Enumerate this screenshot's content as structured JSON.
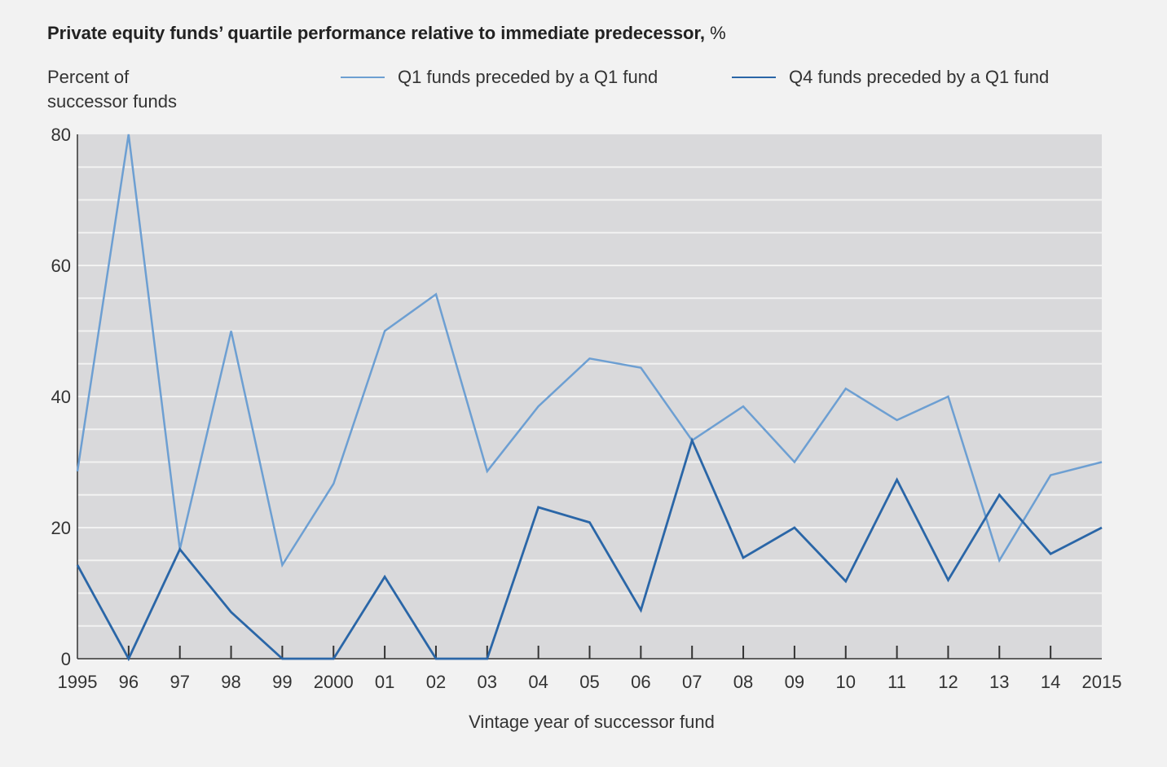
{
  "title": "Private equity funds’ quartile performance relative to immediate predecessor,",
  "title_unit": "%",
  "colors": {
    "background": "#f2f2f2",
    "plot_area": "#d9d9db",
    "gridline": "#f2f2f2",
    "q1_line": "#6d9fd2",
    "q4_line": "#2a66a7",
    "axis": "#333333"
  },
  "chart_data": {
    "type": "line",
    "title": "Private equity funds’ quartile performance relative to immediate predecessor, %",
    "ylabel_lines": [
      "Percent of",
      "successor funds"
    ],
    "xlabel": "Vintage year of successor fund",
    "x_tick_labels": [
      "1995",
      "96",
      "97",
      "98",
      "99",
      "2000",
      "01",
      "02",
      "03",
      "04",
      "05",
      "06",
      "07",
      "08",
      "09",
      "10",
      "11",
      "12",
      "13",
      "14",
      "2015"
    ],
    "y_tick_labels": [
      "0",
      "20",
      "40",
      "60",
      "80"
    ],
    "ylim": [
      0,
      80
    ],
    "y_gridline_step": 5,
    "grid": true,
    "legend_position": "top",
    "series": [
      {
        "name": "Q1 funds preceded by a Q1 fund",
        "color_key": "q1_line",
        "values": [
          28.6,
          80.0,
          16.7,
          50.0,
          14.3,
          26.7,
          50.0,
          55.6,
          28.6,
          38.5,
          45.8,
          44.4,
          33.3,
          38.5,
          30.0,
          41.2,
          36.4,
          40.0,
          15.0,
          28.0,
          30.0
        ]
      },
      {
        "name": "Q4 funds preceded by a Q1 fund",
        "color_key": "q4_line",
        "values": [
          14.3,
          0.0,
          16.7,
          7.1,
          0.0,
          0.0,
          12.5,
          0.0,
          0.0,
          23.1,
          20.8,
          7.4,
          33.3,
          15.4,
          20.0,
          11.8,
          27.3,
          12.0,
          25.0,
          16.0,
          20.0
        ]
      }
    ]
  }
}
